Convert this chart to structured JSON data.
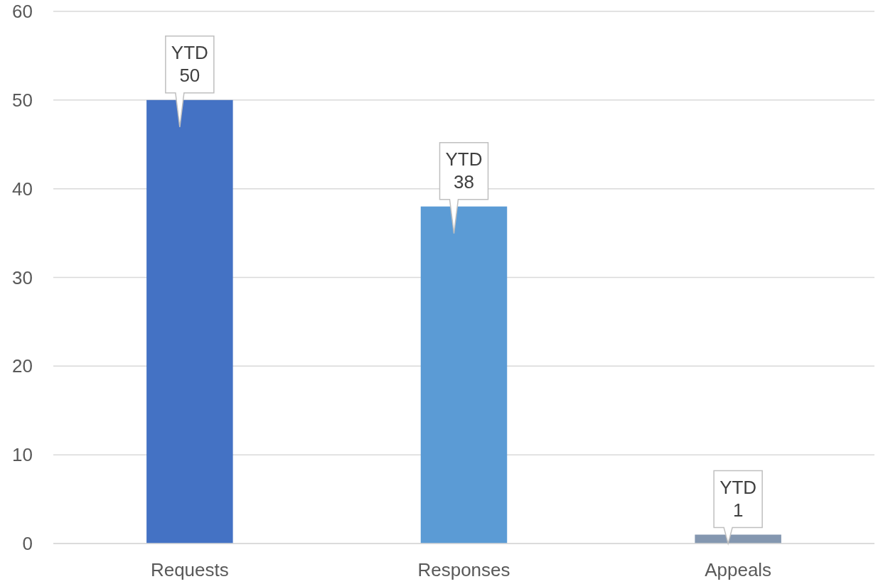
{
  "chart_data": {
    "type": "bar",
    "categories": [
      "Requests",
      "Responses",
      "Appeals"
    ],
    "values": [
      50,
      38,
      1
    ],
    "colors": [
      "#4472c4",
      "#5b9bd5",
      "#8497b0"
    ],
    "value_labels": [
      "YTD\n50",
      "YTD\n38",
      "YTD\n1"
    ],
    "ylim": [
      0,
      60
    ],
    "yticks": [
      0,
      10,
      20,
      30,
      40,
      50,
      60
    ],
    "grid": "y"
  }
}
